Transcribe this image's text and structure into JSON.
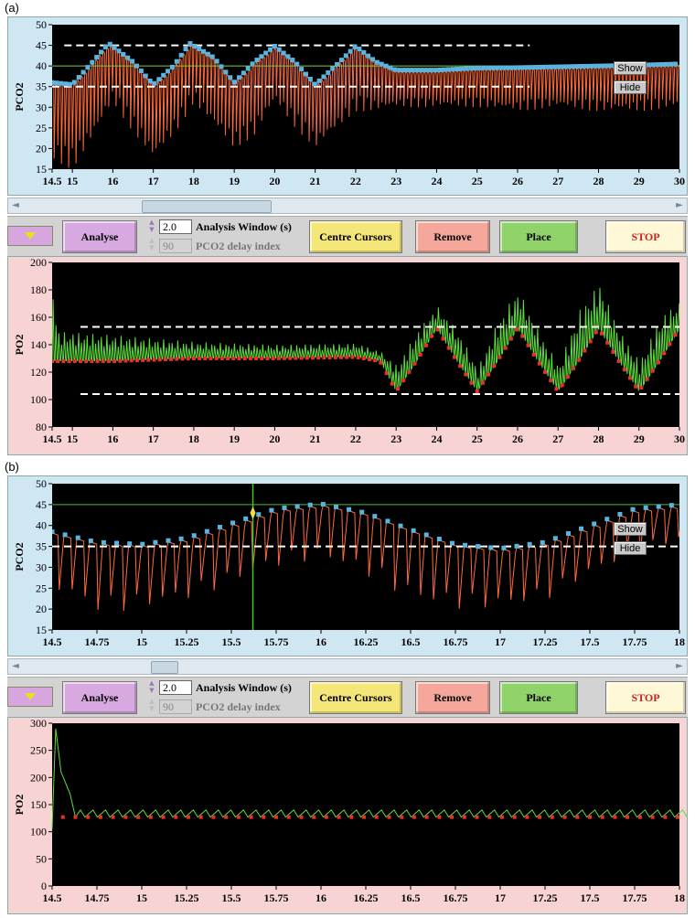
{
  "labels": {
    "a": "(a)",
    "b": "(b)"
  },
  "controls": {
    "analyse": "Analyse",
    "window_value": "2.0",
    "window_label": "Analysis Window (s)",
    "delay_value": "90",
    "delay_label": "PCO2 delay index",
    "centre": "Centre Cursors",
    "remove": "Remove",
    "place": "Place",
    "stop": "STOP",
    "show": "Show",
    "hide": "Hide"
  },
  "colors": {
    "plot_bg": "#000000",
    "trace_orange": "#ff6a3a",
    "trace_green": "#5ddc3c",
    "marker_blue": "#5ab4e0",
    "marker_red": "#e8302a",
    "cursor_green": "#44c030",
    "dashed": "#ffffff",
    "analyse_btn": "#d8a8e0",
    "centre_btn": "#f5e67a",
    "remove_btn": "#f4a79a",
    "place_btn": "#8fd36a",
    "stop_btn": "#fff8d6",
    "stop_text": "#d02020"
  },
  "chart_data": [
    {
      "id": "a-pco2",
      "type": "line",
      "ylabel": "PCO2",
      "xlim": [
        14.5,
        30
      ],
      "ylim": [
        15,
        50
      ],
      "xticks": [
        "14.5",
        "15",
        "16",
        "17",
        "18",
        "19",
        "20",
        "21",
        "22",
        "23",
        "24",
        "25",
        "26",
        "27",
        "28",
        "29",
        "30"
      ],
      "xtick_values": [
        14.5,
        15,
        16,
        17,
        18,
        19,
        20,
        21,
        22,
        23,
        24,
        25,
        26,
        27,
        28,
        29,
        30
      ],
      "yticks": [
        15,
        20,
        25,
        30,
        35,
        40,
        45,
        50
      ],
      "upper_dashed": 45,
      "lower_dashed": 35,
      "dashed_end_x": 26.3,
      "solid_line": 40,
      "envelope": [
        [
          14.5,
          36
        ],
        [
          15,
          35.5
        ],
        [
          15.5,
          41
        ],
        [
          15.9,
          45.5
        ],
        [
          16.5,
          41
        ],
        [
          17,
          35.5
        ],
        [
          17.5,
          40
        ],
        [
          17.9,
          45.5
        ],
        [
          18.5,
          42
        ],
        [
          19,
          36
        ],
        [
          19.5,
          41
        ],
        [
          20,
          44.8
        ],
        [
          20.5,
          41
        ],
        [
          21,
          35.5
        ],
        [
          21.5,
          40
        ],
        [
          22,
          44.8
        ],
        [
          22.5,
          41
        ],
        [
          23,
          39
        ],
        [
          24,
          39
        ],
        [
          25,
          39.5
        ],
        [
          26,
          39.6
        ],
        [
          27,
          39.8
        ],
        [
          28,
          40
        ],
        [
          29,
          40.2
        ],
        [
          30,
          40.5
        ]
      ],
      "minima": [
        [
          14.5,
          17
        ],
        [
          15,
          15
        ],
        [
          15.5,
          22
        ],
        [
          16,
          31
        ],
        [
          16.5,
          24
        ],
        [
          17,
          17
        ],
        [
          17.5,
          23
        ],
        [
          18,
          31
        ],
        [
          18.5,
          25
        ],
        [
          19,
          20
        ],
        [
          19.5,
          23
        ],
        [
          20,
          31
        ],
        [
          20.5,
          25
        ],
        [
          21,
          20
        ],
        [
          21.5,
          24
        ],
        [
          22,
          29
        ],
        [
          22.5,
          29
        ],
        [
          23,
          30
        ],
        [
          24,
          30
        ],
        [
          25,
          30
        ],
        [
          26,
          29
        ],
        [
          27,
          30
        ],
        [
          28,
          29
        ],
        [
          29,
          29
        ],
        [
          30,
          30
        ]
      ]
    },
    {
      "id": "a-po2",
      "type": "line",
      "ylabel": "PO2",
      "xlim": [
        14.5,
        30
      ],
      "ylim": [
        80,
        200
      ],
      "xticks": [
        "14.5",
        "15",
        "16",
        "17",
        "18",
        "19",
        "20",
        "21",
        "22",
        "23",
        "24",
        "25",
        "26",
        "27",
        "28",
        "29",
        "30"
      ],
      "xtick_values": [
        14.5,
        15,
        16,
        17,
        18,
        19,
        20,
        21,
        22,
        23,
        24,
        25,
        26,
        27,
        28,
        29,
        30
      ],
      "yticks": [
        80,
        100,
        120,
        140,
        160,
        180,
        200
      ],
      "upper_dashed": 153,
      "lower_dashed": 104,
      "baseline": [
        [
          14.5,
          128
        ],
        [
          16,
          128
        ],
        [
          18,
          130
        ],
        [
          20,
          130
        ],
        [
          22,
          131
        ],
        [
          22.6,
          128
        ],
        [
          23,
          106
        ],
        [
          23.5,
          128
        ],
        [
          24,
          152
        ],
        [
          24.5,
          128
        ],
        [
          25,
          106
        ],
        [
          25.5,
          128
        ],
        [
          26,
          152
        ],
        [
          26.5,
          128
        ],
        [
          27,
          106
        ],
        [
          27.5,
          128
        ],
        [
          28,
          152
        ],
        [
          28.5,
          128
        ],
        [
          29,
          106
        ],
        [
          29.5,
          128
        ],
        [
          30,
          152
        ]
      ],
      "peaks": [
        [
          14.5,
          195
        ],
        [
          14.6,
          150
        ],
        [
          16,
          147
        ],
        [
          18,
          142
        ],
        [
          20,
          140
        ],
        [
          22,
          141
        ],
        [
          22.6,
          135
        ],
        [
          23,
          125
        ],
        [
          23.5,
          150
        ],
        [
          24,
          168
        ],
        [
          24.5,
          150
        ],
        [
          25,
          123
        ],
        [
          25.5,
          158
        ],
        [
          26,
          180
        ],
        [
          26.5,
          150
        ],
        [
          27,
          125
        ],
        [
          27.5,
          165
        ],
        [
          28,
          185
        ],
        [
          28.5,
          150
        ],
        [
          29,
          128
        ],
        [
          29.5,
          160
        ],
        [
          30,
          172
        ]
      ]
    },
    {
      "id": "b-pco2",
      "type": "line",
      "ylabel": "PCO2",
      "xlim": [
        14.5,
        18
      ],
      "ylim": [
        15,
        50
      ],
      "xticks": [
        "14.5",
        "14.75",
        "15",
        "15.25",
        "15.5",
        "15.75",
        "16",
        "16.25",
        "16.5",
        "16.75",
        "17",
        "17.25",
        "17.5",
        "17.75",
        "18"
      ],
      "xtick_values": [
        14.5,
        14.75,
        15,
        15.25,
        15.5,
        15.75,
        16,
        16.25,
        16.5,
        16.75,
        17,
        17.25,
        17.5,
        17.75,
        18
      ],
      "yticks": [
        15,
        20,
        25,
        30,
        35,
        40,
        45,
        50
      ],
      "upper_line": 45,
      "lower_dashed": 35,
      "cursor_x": 15.62,
      "cursor_y": 43,
      "envelope": [
        [
          14.5,
          38.5
        ],
        [
          14.75,
          36
        ],
        [
          15,
          35.5
        ],
        [
          15.25,
          37
        ],
        [
          15.5,
          40.5
        ],
        [
          15.75,
          44
        ],
        [
          16,
          45.2
        ],
        [
          16.25,
          43
        ],
        [
          16.5,
          39
        ],
        [
          16.75,
          35.5
        ],
        [
          17,
          34.5
        ],
        [
          17.25,
          36
        ],
        [
          17.5,
          40
        ],
        [
          17.75,
          44
        ],
        [
          18,
          45
        ]
      ],
      "minima": [
        [
          14.5,
          25
        ],
        [
          14.75,
          19
        ],
        [
          15,
          20
        ],
        [
          15.25,
          22
        ],
        [
          15.5,
          26
        ],
        [
          15.75,
          30
        ],
        [
          16,
          32
        ],
        [
          16.25,
          28
        ],
        [
          16.5,
          22
        ],
        [
          16.75,
          20
        ],
        [
          17,
          20
        ],
        [
          17.25,
          22
        ],
        [
          17.5,
          28
        ],
        [
          17.75,
          33
        ],
        [
          18,
          36
        ]
      ]
    },
    {
      "id": "b-po2",
      "type": "line",
      "ylabel": "PO2",
      "xlim": [
        14.5,
        18
      ],
      "ylim": [
        0,
        300
      ],
      "xticks": [
        "14.5",
        "14.75",
        "15",
        "15.25",
        "15.5",
        "15.75",
        "16",
        "16.25",
        "16.5",
        "16.75",
        "17",
        "17.25",
        "17.5",
        "17.75",
        "18"
      ],
      "xtick_values": [
        14.5,
        14.75,
        15,
        15.25,
        15.5,
        15.75,
        16,
        16.25,
        16.5,
        16.75,
        17,
        17.25,
        17.5,
        17.75,
        18
      ],
      "yticks": [
        0,
        50,
        100,
        150,
        200,
        250,
        300
      ],
      "baseline": 127,
      "peak": 140,
      "spike_peak": 290
    }
  ]
}
